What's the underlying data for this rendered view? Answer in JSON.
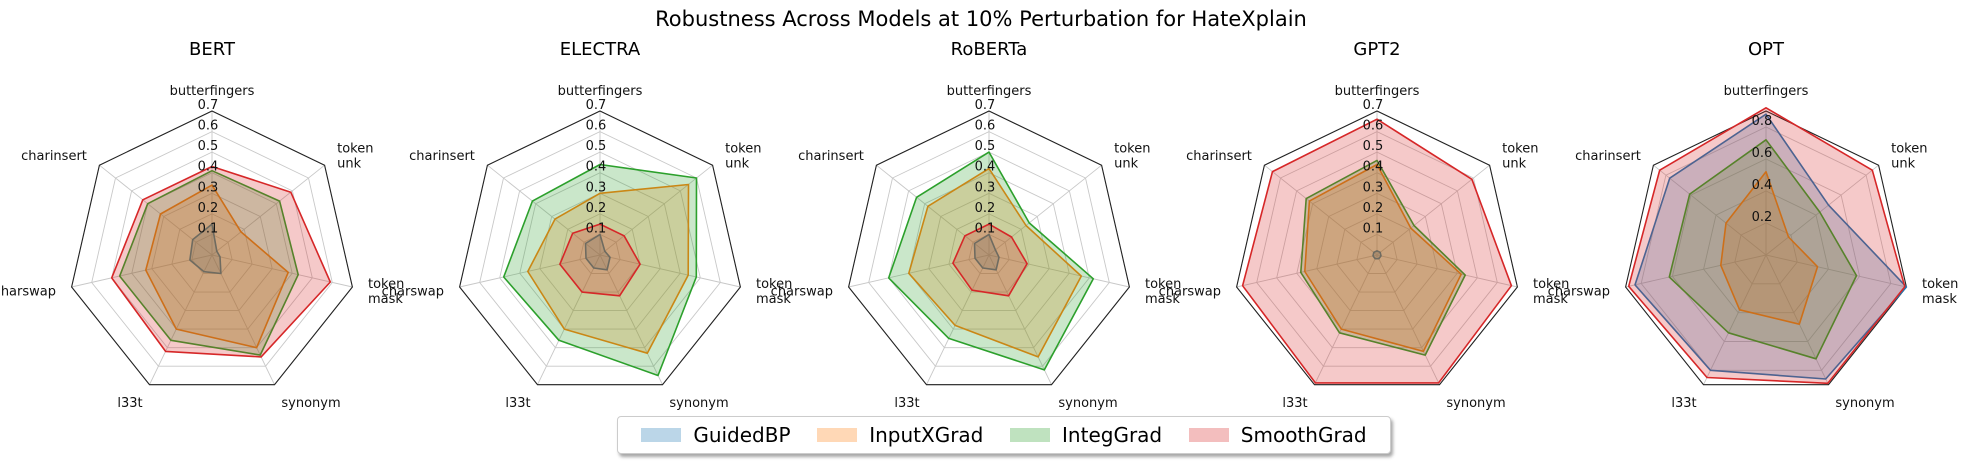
{
  "title": "Robustness Across Models at 10% Perturbation for HateXplain",
  "legend": {
    "items": [
      {
        "label": "GuidedBP",
        "color": "#1f77b4"
      },
      {
        "label": "InputXGrad",
        "color": "#ff7f0e"
      },
      {
        "label": "IntegGrad",
        "color": "#2ca02c"
      },
      {
        "label": "SmoothGrad",
        "color": "#d62728"
      }
    ]
  },
  "chart_data": [
    {
      "type": "radar",
      "title": "BERT",
      "categories": [
        "butterfingers",
        "token\nunk",
        "token\nmask",
        "synonym",
        "l33t",
        "charswap",
        "charinsert"
      ],
      "rmax": 0.7,
      "ticks": [
        0.1,
        0.2,
        0.3,
        0.4,
        0.5,
        0.6,
        0.7
      ],
      "series": [
        {
          "name": "GuidedBP",
          "values": [
            0.15,
            0.03,
            0.04,
            0.1,
            0.09,
            0.11,
            0.12
          ]
        },
        {
          "name": "InputXGrad",
          "values": [
            0.34,
            0.18,
            0.38,
            0.5,
            0.4,
            0.33,
            0.32
          ]
        },
        {
          "name": "IntegGrad",
          "values": [
            0.41,
            0.42,
            0.43,
            0.54,
            0.46,
            0.46,
            0.4
          ]
        },
        {
          "name": "SmoothGrad",
          "values": [
            0.43,
            0.49,
            0.59,
            0.55,
            0.52,
            0.5,
            0.43
          ]
        }
      ]
    },
    {
      "type": "radar",
      "title": "ELECTRA",
      "categories": [
        "butterfingers",
        "token\nunk",
        "token\nmask",
        "synonym",
        "l33t",
        "charswap",
        "charinsert"
      ],
      "rmax": 0.7,
      "ticks": [
        0.1,
        0.2,
        0.3,
        0.4,
        0.5,
        0.6,
        0.7
      ],
      "series": [
        {
          "name": "GuidedBP",
          "values": [
            0.1,
            0.03,
            0.05,
            0.08,
            0.07,
            0.07,
            0.09
          ]
        },
        {
          "name": "InputXGrad",
          "values": [
            0.3,
            0.55,
            0.44,
            0.53,
            0.4,
            0.36,
            0.28
          ]
        },
        {
          "name": "IntegGrad",
          "values": [
            0.44,
            0.6,
            0.48,
            0.65,
            0.46,
            0.48,
            0.42
          ]
        },
        {
          "name": "SmoothGrad",
          "values": [
            0.15,
            0.15,
            0.2,
            0.22,
            0.2,
            0.2,
            0.17
          ]
        }
      ]
    },
    {
      "type": "radar",
      "title": "RoBERTa",
      "categories": [
        "butterfingers",
        "token\nunk",
        "token\nmask",
        "synonym",
        "l33t",
        "charswap",
        "charinsert"
      ],
      "rmax": 0.7,
      "ticks": [
        0.1,
        0.2,
        0.3,
        0.4,
        0.5,
        0.6,
        0.7
      ],
      "series": [
        {
          "name": "GuidedBP",
          "values": [
            0.1,
            0.04,
            0.05,
            0.08,
            0.07,
            0.07,
            0.09
          ]
        },
        {
          "name": "InputXGrad",
          "values": [
            0.42,
            0.23,
            0.46,
            0.55,
            0.38,
            0.4,
            0.38
          ]
        },
        {
          "name": "IntegGrad",
          "values": [
            0.5,
            0.25,
            0.52,
            0.62,
            0.45,
            0.5,
            0.45
          ]
        },
        {
          "name": "SmoothGrad",
          "values": [
            0.15,
            0.14,
            0.19,
            0.22,
            0.19,
            0.18,
            0.15
          ]
        }
      ]
    },
    {
      "type": "radar",
      "title": "GPT2",
      "categories": [
        "butterfingers",
        "token\nunk",
        "token\nmask",
        "synonym",
        "l33t",
        "charswap",
        "charinsert"
      ],
      "rmax": 0.7,
      "ticks": [
        0.1,
        0.2,
        0.3,
        0.4,
        0.5,
        0.6,
        0.7
      ],
      "series": [
        {
          "name": "GuidedBP",
          "values": [
            0.02,
            0.02,
            0.02,
            0.02,
            0.02,
            0.02,
            0.02
          ]
        },
        {
          "name": "InputXGrad",
          "values": [
            0.44,
            0.21,
            0.42,
            0.52,
            0.4,
            0.36,
            0.42
          ]
        },
        {
          "name": "IntegGrad",
          "values": [
            0.46,
            0.23,
            0.44,
            0.54,
            0.42,
            0.38,
            0.44
          ]
        },
        {
          "name": "SmoothGrad",
          "values": [
            0.66,
            0.59,
            0.67,
            0.69,
            0.69,
            0.67,
            0.65
          ]
        }
      ]
    },
    {
      "type": "radar",
      "title": "OPT",
      "categories": [
        "butterfingers",
        "token\nunk",
        "token\nmask",
        "synonym",
        "l33t",
        "charswap",
        "charinsert"
      ],
      "rmax": 0.9,
      "ticks": [
        0.2,
        0.4,
        0.6,
        0.8
      ],
      "series": [
        {
          "name": "GuidedBP",
          "values": [
            0.88,
            0.5,
            0.9,
            0.86,
            0.8,
            0.84,
            0.77
          ]
        },
        {
          "name": "InputXGrad",
          "values": [
            0.52,
            0.18,
            0.33,
            0.48,
            0.38,
            0.29,
            0.32
          ]
        },
        {
          "name": "IntegGrad",
          "values": [
            0.72,
            0.43,
            0.58,
            0.72,
            0.54,
            0.62,
            0.61
          ]
        },
        {
          "name": "SmoothGrad",
          "values": [
            0.92,
            0.85,
            0.89,
            0.89,
            0.85,
            0.88,
            0.85
          ]
        }
      ]
    }
  ]
}
